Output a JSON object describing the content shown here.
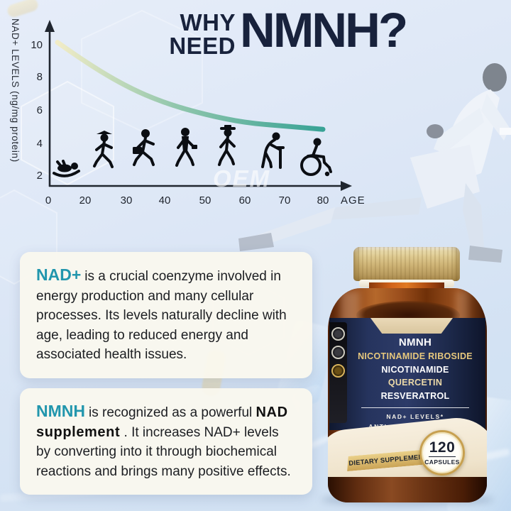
{
  "title": {
    "line1": "WHY",
    "line2": "NEED",
    "highlight": "NMNH?"
  },
  "watermark": "OEM",
  "chart_data": {
    "type": "line",
    "title": "",
    "ylabel": "NAD+ LEVELS (ng/mg protein)",
    "xlabel": "AGE",
    "y_ticks": [
      "2",
      "4",
      "6",
      "8",
      "10"
    ],
    "x_ticks": [
      "0",
      "20",
      "30",
      "40",
      "50",
      "60",
      "70",
      "80"
    ],
    "x": [
      5,
      20,
      30,
      40,
      50,
      60,
      70,
      80
    ],
    "values": [
      10.1,
      8.9,
      7.4,
      6.4,
      5.7,
      5.2,
      5.0,
      4.8
    ],
    "ylim": [
      0,
      11
    ],
    "grid": false,
    "legend": false,
    "curve_colors": [
      "#f2ecc4",
      "#8cc4a8",
      "#2f9f90"
    ],
    "age_stage_icons": [
      "crawling-baby",
      "graduate-child",
      "adult-briefcase",
      "adult-tie",
      "adult-hat",
      "elderly-cane",
      "wheelchair"
    ]
  },
  "cards": [
    {
      "lead": "NAD+",
      "text": "is a crucial coenzyme involved in energy production and many cellular processes. Its levels naturally decline with age, leading to reduced energy and associated health issues."
    },
    {
      "lead": "NMNH",
      "text_before": "is recognized as a powerful ",
      "strong": "NAD supplement",
      "text_after": " . It increases NAD+ levels by converting into it through biochemical reactions and brings many positive effects."
    }
  ],
  "bottle": {
    "label_lines": [
      "NMNH",
      "NICOTINAMIDE RIBOSIDE",
      "NICOTINAMIDE",
      "QUERCETIN",
      "RESVERATROL"
    ],
    "label_line_colors": [
      "#ffffff",
      "#e6c77d",
      "#ffffff",
      "#ecd9a8",
      "#ffffff"
    ],
    "claims": [
      "NAD+ LEVELS*",
      "ANTI- AGING SUPPORT*"
    ],
    "count": "120",
    "count_unit": "CAPSULES",
    "banner": "DIETARY SUPPLEMENT",
    "badge_icons": [
      "certification-seal-icon",
      "certification-seal-icon",
      "certification-seal-gold-icon"
    ]
  },
  "colors": {
    "accent_teal": "#2196ad",
    "headline_navy": "#18223c",
    "label_navy": "#1d2a55",
    "gold": "#c7a050",
    "amber_glass": "#7a3a12",
    "cream_band": "#f2e9d6",
    "chart_axis": "#20262f"
  }
}
